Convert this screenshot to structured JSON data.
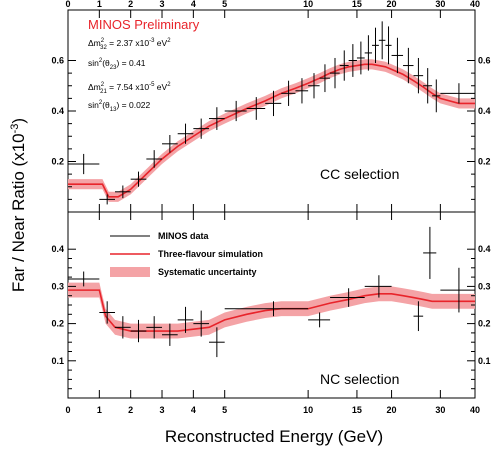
{
  "chart_data": {
    "type": "scatter",
    "xlabel": "Reconstructed Energy (GeV)",
    "ylabel": "Far / Near Ratio (x10",
    "ylabel_sup": "-3",
    "ylabel_close": ")",
    "x_tick_labels": [
      "0",
      "1",
      "2",
      "3",
      "4",
      "5",
      "10",
      "15",
      "20",
      "30",
      "40"
    ],
    "x_tick_values": [
      0,
      1,
      2,
      3,
      4,
      5,
      10,
      15,
      20,
      30,
      40
    ],
    "annotation_title": "MINOS Preliminary",
    "annotations": [
      {
        "prefix": "Δm",
        "sub": "32",
        "sup": "2",
        "rest": " = 2.37 x10",
        "exp": "-3",
        "unit": " eV",
        "unit_sup": "2"
      },
      {
        "prefix": "sin",
        "sup": "2",
        "rest": "(θ",
        "sub": "23",
        "close": ") = 0.41"
      },
      {
        "prefix": "Δm",
        "sub": "21",
        "sup": "2",
        "rest": " = 7.54 x10",
        "exp": "-5",
        "unit": " eV",
        "unit_sup": "2"
      },
      {
        "prefix": "sin",
        "sup": "2",
        "rest": "(θ",
        "sub": "13",
        "close": ") = 0.022"
      }
    ],
    "legend": [
      {
        "label": "MINOS data",
        "kind": "data"
      },
      {
        "label": "Three-flavour simulation",
        "kind": "line"
      },
      {
        "label": "Systematic uncertainty",
        "kind": "band"
      }
    ],
    "colors": {
      "simulation": "#e8242b",
      "band": "#f4a3a6",
      "data": "#000000"
    },
    "panels": [
      {
        "name": "CC selection",
        "ylim": [
          0,
          0.8
        ],
        "yticks": [
          0.2,
          0.4,
          0.6
        ],
        "ytick_labels": [
          "0.2",
          "0.4",
          "0.6"
        ],
        "data": [
          {
            "x": 0.5,
            "y": 0.19,
            "xerr": 0.5,
            "yerr": 0.04
          },
          {
            "x": 1.25,
            "y": 0.05,
            "xerr": 0.25,
            "yerr": 0.02
          },
          {
            "x": 1.75,
            "y": 0.08,
            "xerr": 0.25,
            "yerr": 0.025
          },
          {
            "x": 2.25,
            "y": 0.13,
            "xerr": 0.25,
            "yerr": 0.03
          },
          {
            "x": 2.75,
            "y": 0.21,
            "xerr": 0.25,
            "yerr": 0.035
          },
          {
            "x": 3.25,
            "y": 0.27,
            "xerr": 0.25,
            "yerr": 0.035
          },
          {
            "x": 3.75,
            "y": 0.31,
            "xerr": 0.25,
            "yerr": 0.04
          },
          {
            "x": 4.25,
            "y": 0.33,
            "xerr": 0.25,
            "yerr": 0.04
          },
          {
            "x": 4.75,
            "y": 0.37,
            "xerr": 0.25,
            "yerr": 0.045
          },
          {
            "x": 5.5,
            "y": 0.4,
            "xerr": 0.5,
            "yerr": 0.04
          },
          {
            "x": 6.5,
            "y": 0.41,
            "xerr": 0.5,
            "yerr": 0.045
          },
          {
            "x": 7.5,
            "y": 0.43,
            "xerr": 0.5,
            "yerr": 0.05
          },
          {
            "x": 8.5,
            "y": 0.47,
            "xerr": 0.5,
            "yerr": 0.05
          },
          {
            "x": 9.5,
            "y": 0.48,
            "xerr": 0.5,
            "yerr": 0.05
          },
          {
            "x": 10.5,
            "y": 0.5,
            "xerr": 0.5,
            "yerr": 0.05
          },
          {
            "x": 11.5,
            "y": 0.53,
            "xerr": 0.5,
            "yerr": 0.055
          },
          {
            "x": 12.5,
            "y": 0.55,
            "xerr": 0.5,
            "yerr": 0.06
          },
          {
            "x": 13.5,
            "y": 0.58,
            "xerr": 0.5,
            "yerr": 0.06
          },
          {
            "x": 14.5,
            "y": 0.6,
            "xerr": 0.5,
            "yerr": 0.065
          },
          {
            "x": 15.5,
            "y": 0.61,
            "xerr": 0.5,
            "yerr": 0.065
          },
          {
            "x": 16.5,
            "y": 0.63,
            "xerr": 0.5,
            "yerr": 0.07
          },
          {
            "x": 17.5,
            "y": 0.66,
            "xerr": 0.5,
            "yerr": 0.07
          },
          {
            "x": 18.5,
            "y": 0.68,
            "xerr": 0.5,
            "yerr": 0.075
          },
          {
            "x": 19.5,
            "y": 0.66,
            "xerr": 0.5,
            "yerr": 0.075
          },
          {
            "x": 21,
            "y": 0.62,
            "xerr": 1,
            "yerr": 0.07
          },
          {
            "x": 23,
            "y": 0.58,
            "xerr": 1,
            "yerr": 0.07
          },
          {
            "x": 25,
            "y": 0.54,
            "xerr": 1,
            "yerr": 0.07
          },
          {
            "x": 27,
            "y": 0.5,
            "xerr": 1,
            "yerr": 0.07
          },
          {
            "x": 29,
            "y": 0.46,
            "xerr": 1,
            "yerr": 0.065
          },
          {
            "x": 35,
            "y": 0.47,
            "xerr": 5,
            "yerr": 0.04
          }
        ],
        "simulation": [
          {
            "x": 0,
            "y": 0.11
          },
          {
            "x": 1.1,
            "y": 0.11
          },
          {
            "x": 1.3,
            "y": 0.06
          },
          {
            "x": 1.6,
            "y": 0.06
          },
          {
            "x": 2,
            "y": 0.09
          },
          {
            "x": 2.5,
            "y": 0.15
          },
          {
            "x": 3,
            "y": 0.21
          },
          {
            "x": 3.5,
            "y": 0.26
          },
          {
            "x": 4,
            "y": 0.3
          },
          {
            "x": 4.5,
            "y": 0.34
          },
          {
            "x": 5,
            "y": 0.37
          },
          {
            "x": 6,
            "y": 0.41
          },
          {
            "x": 7,
            "y": 0.44
          },
          {
            "x": 8,
            "y": 0.47
          },
          {
            "x": 9,
            "y": 0.49
          },
          {
            "x": 10,
            "y": 0.51
          },
          {
            "x": 11,
            "y": 0.53
          },
          {
            "x": 12,
            "y": 0.55
          },
          {
            "x": 13,
            "y": 0.565
          },
          {
            "x": 14,
            "y": 0.575
          },
          {
            "x": 15,
            "y": 0.58
          },
          {
            "x": 16,
            "y": 0.585
          },
          {
            "x": 17,
            "y": 0.585
          },
          {
            "x": 18,
            "y": 0.58
          },
          {
            "x": 19,
            "y": 0.575
          },
          {
            "x": 20,
            "y": 0.565
          },
          {
            "x": 22,
            "y": 0.545
          },
          {
            "x": 24,
            "y": 0.52
          },
          {
            "x": 26,
            "y": 0.495
          },
          {
            "x": 28,
            "y": 0.47
          },
          {
            "x": 30,
            "y": 0.45
          },
          {
            "x": 35,
            "y": 0.43
          },
          {
            "x": 40,
            "y": 0.43
          }
        ],
        "band_halfwidth": 0.02
      },
      {
        "name": "NC selection",
        "ylim": [
          0,
          0.5
        ],
        "yticks": [
          0.1,
          0.2,
          0.3,
          0.4
        ],
        "ytick_labels": [
          "0.1",
          "0.2",
          "0.3",
          "0.4"
        ],
        "data": [
          {
            "x": 0.5,
            "y": 0.32,
            "xerr": 0.5,
            "yerr": 0.02
          },
          {
            "x": 1.25,
            "y": 0.23,
            "xerr": 0.25,
            "yerr": 0.03
          },
          {
            "x": 1.75,
            "y": 0.19,
            "xerr": 0.25,
            "yerr": 0.03
          },
          {
            "x": 2.25,
            "y": 0.18,
            "xerr": 0.25,
            "yerr": 0.03
          },
          {
            "x": 2.75,
            "y": 0.19,
            "xerr": 0.25,
            "yerr": 0.03
          },
          {
            "x": 3.25,
            "y": 0.17,
            "xerr": 0.25,
            "yerr": 0.03
          },
          {
            "x": 3.75,
            "y": 0.21,
            "xerr": 0.25,
            "yerr": 0.035
          },
          {
            "x": 4.25,
            "y": 0.2,
            "xerr": 0.25,
            "yerr": 0.035
          },
          {
            "x": 4.75,
            "y": 0.15,
            "xerr": 0.25,
            "yerr": 0.04
          },
          {
            "x": 7.5,
            "y": 0.24,
            "xerr": 2.5,
            "yerr": 0.02
          },
          {
            "x": 11,
            "y": 0.21,
            "xerr": 1,
            "yerr": 0.02
          },
          {
            "x": 14,
            "y": 0.27,
            "xerr": 2,
            "yerr": 0.025
          },
          {
            "x": 18,
            "y": 0.3,
            "xerr": 2,
            "yerr": 0.03
          },
          {
            "x": 25,
            "y": 0.22,
            "xerr": 1,
            "yerr": 0.04
          },
          {
            "x": 27.5,
            "y": 0.39,
            "xerr": 1.5,
            "yerr": 0.07
          },
          {
            "x": 35,
            "y": 0.29,
            "xerr": 5,
            "yerr": 0.06
          }
        ],
        "simulation": [
          {
            "x": 0,
            "y": 0.29
          },
          {
            "x": 1.0,
            "y": 0.29
          },
          {
            "x": 1.2,
            "y": 0.22
          },
          {
            "x": 1.5,
            "y": 0.19
          },
          {
            "x": 2,
            "y": 0.18
          },
          {
            "x": 2.5,
            "y": 0.18
          },
          {
            "x": 3,
            "y": 0.18
          },
          {
            "x": 3.5,
            "y": 0.18
          },
          {
            "x": 4,
            "y": 0.185
          },
          {
            "x": 4.5,
            "y": 0.19
          },
          {
            "x": 5,
            "y": 0.21
          },
          {
            "x": 6,
            "y": 0.225
          },
          {
            "x": 7,
            "y": 0.235
          },
          {
            "x": 8,
            "y": 0.24
          },
          {
            "x": 9,
            "y": 0.24
          },
          {
            "x": 10,
            "y": 0.24
          },
          {
            "x": 12,
            "y": 0.255
          },
          {
            "x": 14,
            "y": 0.265
          },
          {
            "x": 16,
            "y": 0.275
          },
          {
            "x": 18,
            "y": 0.28
          },
          {
            "x": 20,
            "y": 0.28
          },
          {
            "x": 22,
            "y": 0.275
          },
          {
            "x": 24,
            "y": 0.27
          },
          {
            "x": 26,
            "y": 0.265
          },
          {
            "x": 28,
            "y": 0.26
          },
          {
            "x": 30,
            "y": 0.26
          },
          {
            "x": 35,
            "y": 0.26
          },
          {
            "x": 40,
            "y": 0.26
          }
        ],
        "band_halfwidth": 0.02
      }
    ]
  }
}
